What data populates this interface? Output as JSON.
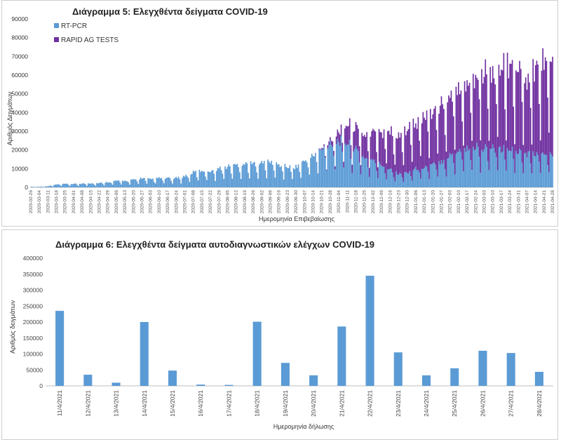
{
  "chart_data": [
    {
      "type": "bar",
      "stacked": true,
      "title": "Διάγραμμα 5: Ελεγχθέντα δείγματα COVID-19",
      "xlabel": "Ημερομηνία Επιβεβαίωσης",
      "ylabel": "Αριθμός Δειγμάτων",
      "ylim": [
        0,
        90000
      ],
      "yticks": [
        0,
        10000,
        20000,
        30000,
        40000,
        50000,
        60000,
        70000,
        80000,
        90000
      ],
      "grid": false,
      "legend": "top-left",
      "x_start": "2020-02-26",
      "x_end": "2021-04-28",
      "x_tick_labels": [
        "2020-02-26",
        "2020-03-04",
        "2020-03-11",
        "2020-03-18",
        "2020-03-25",
        "2020-04-01",
        "2020-04-08",
        "2020-04-15",
        "2020-04-22",
        "2020-04-29",
        "2020-05-06",
        "2020-05-13",
        "2020-05-20",
        "2020-05-27",
        "2020-06-03",
        "2020-06-10",
        "2020-06-17",
        "2020-06-24",
        "2020-07-01",
        "2020-07-08",
        "2020-07-15",
        "2020-07-22",
        "2020-07-29",
        "2020-08-05",
        "2020-08-12",
        "2020-08-19",
        "2020-08-26",
        "2020-09-02",
        "2020-09-09",
        "2020-09-16",
        "2020-09-23",
        "2020-09-30",
        "2020-10-07",
        "2020-10-14",
        "2020-10-21",
        "2020-10-28",
        "2020-11-04",
        "2020-11-11",
        "2020-11-18",
        "2020-11-25",
        "2020-12-02",
        "2020-12-09",
        "2020-12-16",
        "2020-12-23",
        "2020-12-30",
        "2021-01-06",
        "2021-01-13",
        "2021-01-20",
        "2021-01-27",
        "2021-02-03",
        "2021-02-10",
        "2021-02-17",
        "2021-02-24",
        "2021-03-03",
        "2021-03-10",
        "2021-03-17",
        "2021-03-24",
        "2021-03-31",
        "2021-04-07",
        "2021-04-14",
        "2021-04-21",
        "2021-04-28"
      ],
      "series_colors": {
        "RT-PCR": "#5b9bd5",
        "RAPID AG TESTS": "#7030a0"
      },
      "series": [
        {
          "name": "RT-PCR",
          "weekly_avg": [
            300,
            300,
            600,
            1500,
            1800,
            1800,
            2000,
            2200,
            2300,
            2800,
            3500,
            3500,
            4000,
            5000,
            4200,
            5000,
            4800,
            5000,
            6000,
            8000,
            9000,
            9000,
            10000,
            11000,
            12000,
            12500,
            12500,
            13000,
            13500,
            12000,
            11000,
            11000,
            14000,
            17000,
            20000,
            24000,
            25000,
            24000,
            20000,
            16000,
            14000,
            12000,
            10000,
            7000,
            8000,
            10000,
            11000,
            12000,
            14000,
            17000,
            20000,
            21000,
            22000,
            21000,
            21000,
            20000,
            21000,
            19000,
            18000,
            18000,
            18000,
            18000
          ]
        },
        {
          "name": "RAPID AG TESTS",
          "weekly_avg": [
            0,
            0,
            0,
            0,
            0,
            0,
            0,
            0,
            0,
            0,
            0,
            0,
            0,
            0,
            0,
            0,
            0,
            0,
            0,
            0,
            0,
            0,
            0,
            0,
            0,
            0,
            0,
            0,
            0,
            0,
            0,
            0,
            0,
            0,
            500,
            2000,
            5000,
            10000,
            11000,
            12000,
            15000,
            17000,
            20000,
            20000,
            22000,
            25000,
            28000,
            28000,
            30000,
            30000,
            33000,
            36000,
            38000,
            40000,
            40000,
            43000,
            45000,
            45000,
            42000,
            45000,
            50000,
            50000
          ]
        }
      ]
    },
    {
      "type": "bar",
      "title": "Διάγραμμα 6: Ελεγχθέντα δείγματα αυτοδιαγνωστικών ελέγχων COVID-19",
      "xlabel": "Ημερομηνία δήλωσης",
      "ylabel": "Αριθμός δειγμάτων",
      "ylim": [
        0,
        400000
      ],
      "yticks": [
        0,
        50000,
        100000,
        150000,
        200000,
        250000,
        300000,
        350000,
        400000
      ],
      "grid": false,
      "color": "#5b9bd5",
      "categories": [
        "11/4/2021",
        "12/4/2021",
        "13/4/2021",
        "14/4/2021",
        "15/4/2021",
        "16/4/2021",
        "17/4/2021",
        "18/4/2021",
        "19/4/2021",
        "20/4/2021",
        "21/4/2021",
        "22/4/2021",
        "23/4/2021",
        "24/4/2021",
        "25/4/2021",
        "26/4/2021",
        "27/4/2021",
        "28/4/2021"
      ],
      "values": [
        235000,
        35000,
        10000,
        200000,
        48000,
        4000,
        3000,
        201000,
        72000,
        33000,
        186000,
        345000,
        105000,
        33000,
        55000,
        110000,
        103000,
        44000
      ]
    }
  ]
}
